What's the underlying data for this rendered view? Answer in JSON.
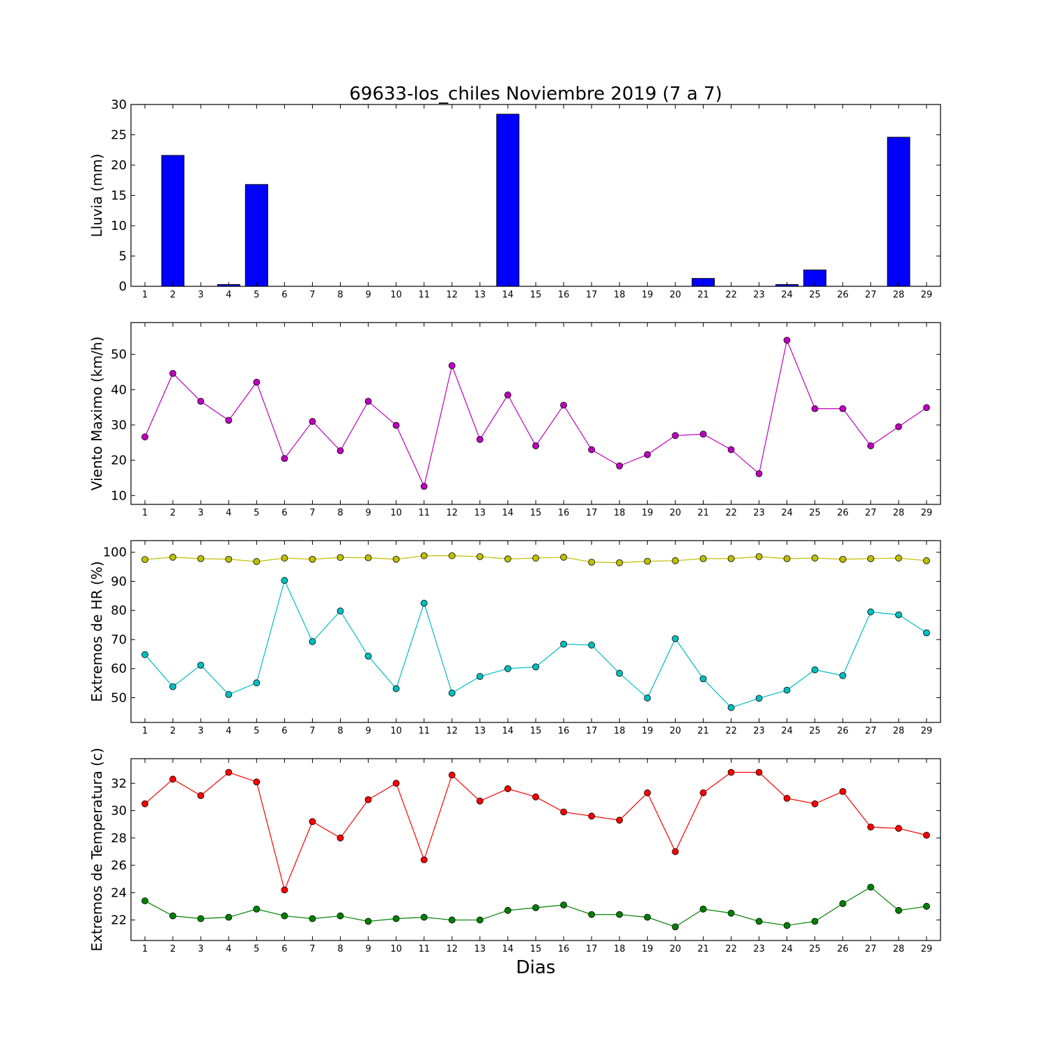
{
  "title": "69633-los_chiles Noviembre 2019  (7 a 7)",
  "xlabel": "Dias",
  "chart_data": [
    {
      "type": "bar",
      "ylabel": "Lluvia (mm)",
      "ylim": [
        0,
        30
      ],
      "yticks": [
        0,
        5,
        10,
        15,
        20,
        25,
        30
      ],
      "x": [
        1,
        2,
        3,
        4,
        5,
        6,
        7,
        8,
        9,
        10,
        11,
        12,
        13,
        14,
        15,
        16,
        17,
        18,
        19,
        20,
        21,
        22,
        23,
        24,
        25,
        26,
        27,
        28,
        29
      ],
      "series": [
        {
          "color": "#0000ff",
          "values": [
            0,
            21.6,
            0,
            0.3,
            16.8,
            0,
            0,
            0,
            0,
            0,
            0,
            0,
            0,
            28.4,
            0,
            0,
            0,
            0,
            0,
            0,
            1.3,
            0,
            0,
            0.3,
            2.7,
            0,
            0,
            24.6,
            0
          ]
        }
      ]
    },
    {
      "type": "line",
      "ylabel": "Viento Maximo (km/h)",
      "ylim": [
        7.5,
        59
      ],
      "yticks": [
        10,
        20,
        30,
        40,
        50
      ],
      "x": [
        1,
        2,
        3,
        4,
        5,
        6,
        7,
        8,
        9,
        10,
        11,
        12,
        13,
        14,
        15,
        16,
        17,
        18,
        19,
        20,
        21,
        22,
        23,
        24,
        25,
        26,
        27,
        28,
        29
      ],
      "series": [
        {
          "color": "#bf00bf",
          "values": [
            26.6,
            44.6,
            36.7,
            31.3,
            42.1,
            20.5,
            31.0,
            22.7,
            36.7,
            29.9,
            12.6,
            46.8,
            25.9,
            38.5,
            24.1,
            35.6,
            23.0,
            18.4,
            21.6,
            27.0,
            27.4,
            23.0,
            16.2,
            54.0,
            34.6,
            34.6,
            24.1,
            29.5,
            34.9
          ]
        }
      ]
    },
    {
      "type": "line",
      "ylabel": "Extremos de HR (%)",
      "ylim": [
        41.5,
        104
      ],
      "yticks": [
        50,
        60,
        70,
        80,
        90,
        100
      ],
      "x": [
        1,
        2,
        3,
        4,
        5,
        6,
        7,
        8,
        9,
        10,
        11,
        12,
        13,
        14,
        15,
        16,
        17,
        18,
        19,
        20,
        21,
        22,
        23,
        24,
        25,
        26,
        27,
        28,
        29
      ],
      "series": [
        {
          "color": "#bfbf00",
          "values": [
            97.5,
            98.3,
            97.8,
            97.6,
            96.8,
            98.0,
            97.6,
            98.2,
            98.1,
            97.6,
            98.8,
            98.8,
            98.5,
            97.7,
            98.0,
            98.3,
            96.6,
            96.4,
            96.9,
            97.1,
            97.8,
            97.8,
            98.5,
            97.8,
            98.0,
            97.6,
            97.8,
            98.0,
            97.1
          ]
        },
        {
          "color": "#00bfbf",
          "values": [
            64.8,
            53.8,
            61.2,
            51.1,
            55.1,
            90.3,
            69.3,
            79.8,
            64.3,
            53.1,
            82.5,
            51.6,
            57.3,
            60.0,
            60.6,
            68.4,
            68.1,
            58.4,
            49.9,
            70.3,
            56.5,
            46.6,
            49.8,
            52.6,
            59.6,
            57.6,
            79.5,
            78.5,
            72.3
          ]
        }
      ]
    },
    {
      "type": "line",
      "ylabel": "Extremos de Temperatura (c)",
      "ylim": [
        20.5,
        33.8
      ],
      "yticks": [
        22,
        24,
        26,
        28,
        30,
        32
      ],
      "x": [
        1,
        2,
        3,
        4,
        5,
        6,
        7,
        8,
        9,
        10,
        11,
        12,
        13,
        14,
        15,
        16,
        17,
        18,
        19,
        20,
        21,
        22,
        23,
        24,
        25,
        26,
        27,
        28,
        29
      ],
      "series": [
        {
          "color": "#ff0000",
          "values": [
            30.5,
            32.3,
            31.1,
            32.8,
            32.1,
            24.2,
            29.2,
            28.0,
            30.8,
            32.0,
            26.4,
            32.6,
            30.7,
            31.6,
            31.0,
            29.9,
            29.6,
            29.3,
            31.3,
            27.0,
            31.3,
            32.8,
            32.8,
            30.9,
            30.5,
            31.4,
            28.8,
            28.7,
            28.2
          ]
        },
        {
          "color": "#008000",
          "values": [
            23.4,
            22.3,
            22.1,
            22.2,
            22.8,
            22.3,
            22.1,
            22.3,
            21.9,
            22.1,
            22.2,
            22.0,
            22.0,
            22.7,
            22.9,
            23.1,
            22.4,
            22.4,
            22.2,
            21.5,
            22.8,
            22.5,
            21.9,
            21.6,
            21.9,
            23.2,
            24.4,
            22.7,
            23.0
          ]
        }
      ]
    }
  ]
}
